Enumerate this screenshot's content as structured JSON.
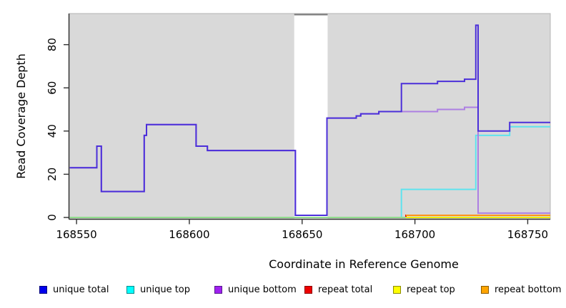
{
  "y_axis": {
    "label": "Read Coverage Depth",
    "ticks": [
      0,
      20,
      40,
      60,
      80
    ]
  },
  "x_axis": {
    "label": "Coordinate in Reference Genome",
    "ticks": [
      168550,
      168600,
      168650,
      168700,
      168750
    ]
  },
  "legend": [
    {
      "label": "unique total",
      "fill": "#0000EE",
      "border": "#00007A"
    },
    {
      "label": "unique top",
      "fill": "#00FFFF",
      "border": "#008B8B"
    },
    {
      "label": "unique bottom",
      "fill": "#A020F0",
      "border": "#551A8B"
    },
    {
      "label": "repeat total",
      "fill": "#EE0000",
      "border": "#8B0000"
    },
    {
      "label": "repeat top",
      "fill": "#FFFF00",
      "border": "#8B8B00"
    },
    {
      "label": "repeat bottom",
      "fill": "#FFA500",
      "border": "#8B5A00"
    }
  ],
  "chart_data": {
    "type": "line",
    "step": true,
    "title": "",
    "xlabel": "Coordinate in Reference Genome",
    "ylabel": "Read Coverage Depth",
    "xlim": [
      168546.8,
      168760
    ],
    "ylim": [
      0,
      94.4
    ],
    "grid": false,
    "legend_position": "bottom",
    "panel_bg": "#D9D9D9",
    "panel_border": "#B3B3B3",
    "axis_color": "#303030",
    "gap_region": {
      "from": 168646.5,
      "to": 168661.3,
      "fill": "#FFFFFF",
      "border_top": "#7A7A7A"
    },
    "series": [
      {
        "name": "repeat total",
        "color": "#DD0000",
        "points": [
          [
            168547,
            0
          ],
          [
            168696,
            1
          ],
          [
            168760,
            1
          ]
        ]
      },
      {
        "name": "repeat top",
        "color": "#EDED00",
        "points": [
          [
            168547,
            0
          ],
          [
            168760,
            0
          ]
        ]
      },
      {
        "name": "unique top",
        "color": "#5FE3EE",
        "points": [
          [
            168547,
            0
          ],
          [
            168694,
            13
          ],
          [
            168727,
            38
          ],
          [
            168742,
            42
          ],
          [
            168760,
            42
          ]
        ]
      },
      {
        "name": "unique top + repeat top overlap at zero",
        "color": "#90DC8C",
        "points": [
          [
            168547,
            0
          ],
          [
            168696,
            0
          ]
        ]
      },
      {
        "name": "repeat bottom",
        "color": "#FF9414",
        "points": [
          [
            168696,
            1
          ],
          [
            168760,
            1
          ]
        ]
      },
      {
        "name": "unique bottom",
        "color": "#AD7FE2",
        "points": [
          [
            168547,
            23
          ],
          [
            168559,
            33
          ],
          [
            168561,
            12
          ],
          [
            168580,
            38
          ],
          [
            168581,
            43
          ],
          [
            168603,
            33
          ],
          [
            168608,
            31
          ],
          [
            168647,
            1
          ],
          [
            168661,
            46
          ],
          [
            168674,
            47
          ],
          [
            168676,
            48
          ],
          [
            168684,
            49
          ],
          [
            168710,
            50
          ],
          [
            168722,
            51
          ],
          [
            168728,
            2
          ],
          [
            168760,
            2
          ]
        ]
      },
      {
        "name": "unique total",
        "color": "#4B2FD9",
        "points": [
          [
            168547,
            23
          ],
          [
            168559,
            33
          ],
          [
            168561,
            12
          ],
          [
            168580,
            38
          ],
          [
            168581,
            43
          ],
          [
            168603,
            33
          ],
          [
            168608,
            31
          ],
          [
            168647,
            1
          ],
          [
            168661,
            46
          ],
          [
            168674,
            47
          ],
          [
            168676,
            48
          ],
          [
            168684,
            49
          ],
          [
            168694,
            62
          ],
          [
            168710,
            63
          ],
          [
            168722,
            64
          ],
          [
            168727,
            89
          ],
          [
            168728,
            40
          ],
          [
            168742,
            44
          ],
          [
            168760,
            44
          ]
        ]
      }
    ]
  }
}
